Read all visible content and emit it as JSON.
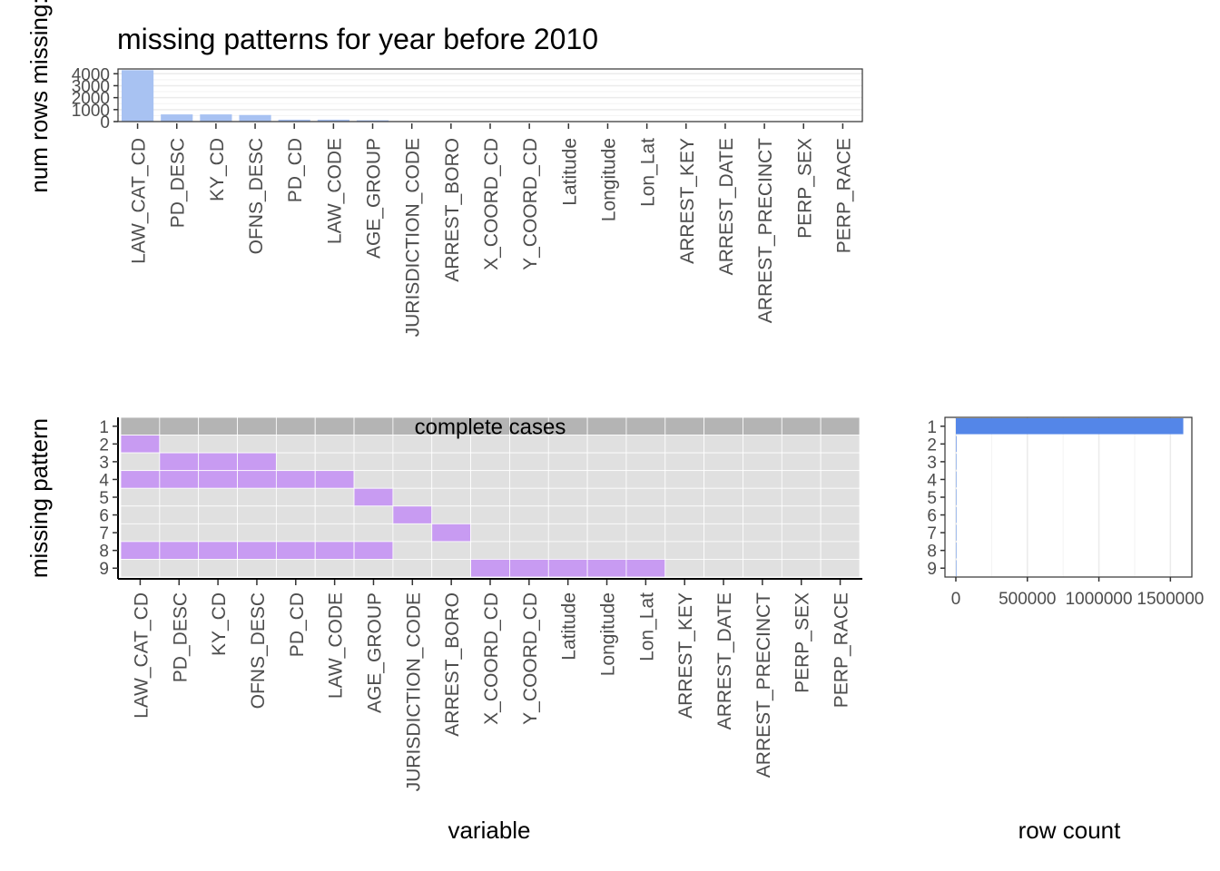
{
  "title": "missing patterns for year before 2010",
  "variables": [
    "LAW_CAT_CD",
    "PD_DESC",
    "KY_CD",
    "OFNS_DESC",
    "PD_CD",
    "LAW_CODE",
    "AGE_GROUP",
    "JURISDICTION_CODE",
    "ARREST_BORO",
    "X_COORD_CD",
    "Y_COORD_CD",
    "Latitude",
    "Longitude",
    "Lon_Lat",
    "ARREST_KEY",
    "ARREST_DATE",
    "ARREST_PRECINCT",
    "PERP_SEX",
    "PERP_RACE"
  ],
  "colors": {
    "top_bar": "#a8c2f2",
    "missing_cell": "#c89bf2",
    "present_cell": "#e0e0e0",
    "complete_row": "#b4b4b4",
    "row_count_bar": "#5486e8",
    "grid": "#ebebeb"
  },
  "chart_data": [
    {
      "type": "bar",
      "ylabel": "num rows missing:",
      "categories": [
        "LAW_CAT_CD",
        "PD_DESC",
        "KY_CD",
        "OFNS_DESC",
        "PD_CD",
        "LAW_CODE",
        "AGE_GROUP",
        "JURISDICTION_CODE",
        "ARREST_BORO",
        "X_COORD_CD",
        "Y_COORD_CD",
        "Latitude",
        "Longitude",
        "Lon_Lat",
        "ARREST_KEY",
        "ARREST_DATE",
        "ARREST_PRECINCT",
        "PERP_SEX",
        "PERP_RACE"
      ],
      "values": [
        4300,
        600,
        600,
        550,
        160,
        160,
        110,
        10,
        10,
        8,
        8,
        8,
        8,
        8,
        0,
        0,
        0,
        0,
        0
      ],
      "yticks": [
        "0",
        "1000",
        "2000",
        "3000",
        "4000"
      ],
      "ylim": [
        0,
        4400
      ]
    },
    {
      "type": "heatmap",
      "xlabel": "variable",
      "ylabel": "missing pattern",
      "patterns": [
        "1",
        "2",
        "3",
        "4",
        "5",
        "6",
        "7",
        "8",
        "9"
      ],
      "annotation": "complete cases",
      "missing": [
        [],
        [
          "LAW_CAT_CD"
        ],
        [
          "PD_DESC",
          "KY_CD",
          "OFNS_DESC"
        ],
        [
          "LAW_CAT_CD",
          "PD_DESC",
          "KY_CD",
          "OFNS_DESC",
          "PD_CD",
          "LAW_CODE"
        ],
        [
          "AGE_GROUP"
        ],
        [
          "JURISDICTION_CODE"
        ],
        [
          "ARREST_BORO"
        ],
        [
          "LAW_CAT_CD",
          "PD_DESC",
          "KY_CD",
          "OFNS_DESC",
          "PD_CD",
          "LAW_CODE",
          "AGE_GROUP"
        ],
        [
          "X_COORD_CD",
          "Y_COORD_CD",
          "Latitude",
          "Longitude",
          "Lon_Lat"
        ]
      ]
    },
    {
      "type": "bar",
      "orientation": "horizontal",
      "xlabel": "row count",
      "categories": [
        "1",
        "2",
        "3",
        "4",
        "5",
        "6",
        "7",
        "8",
        "9"
      ],
      "values": [
        1590000,
        4000,
        500,
        60,
        100,
        10,
        10,
        50,
        8
      ],
      "xticks": [
        "0",
        "500000",
        "1000000",
        "1500000"
      ],
      "xlim": [
        0,
        1650000
      ]
    }
  ]
}
